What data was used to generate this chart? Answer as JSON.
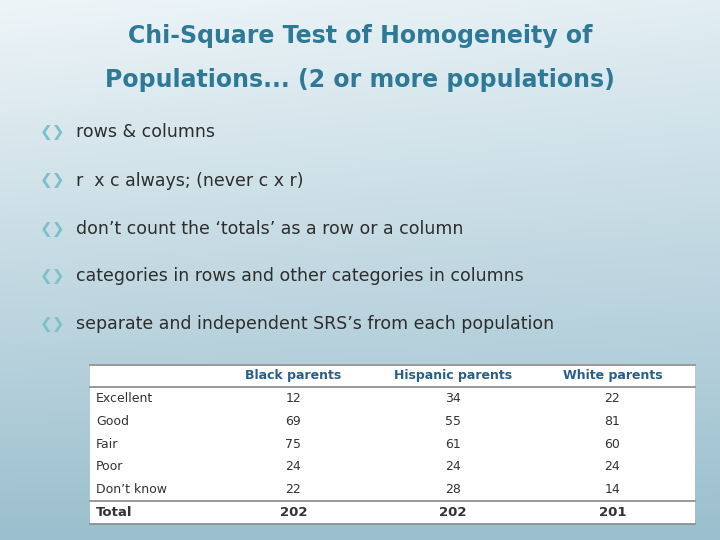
{
  "title_line1": "Chi-Square Test of Homogeneity of",
  "title_line2": "Populations... (2 or more populations)",
  "title_color": "#2e7a96",
  "bullet_color": "#7dbfca",
  "bullets": [
    "rows & columns",
    "r  x c always; (never c x r)",
    "don’t count the ‘totals’ as a row or a column",
    "categories in rows and other categories in columns",
    "separate and independent SRS’s from each population"
  ],
  "table_headers": [
    "",
    "Black parents",
    "Hispanic parents",
    "White parents"
  ],
  "table_rows": [
    [
      "Excellent",
      "12",
      "34",
      "22"
    ],
    [
      "Good",
      "69",
      "55",
      "81"
    ],
    [
      "Fair",
      "75",
      "61",
      "60"
    ],
    [
      "Poor",
      "24",
      "24",
      "24"
    ],
    [
      "Don’t know",
      "22",
      "28",
      "14"
    ],
    [
      "Total",
      "202",
      "202",
      "201"
    ]
  ],
  "bg_color_top_left": "#eef5f8",
  "bg_color_bottom": "#9bbfce",
  "bg_color_right": "#c5dde6",
  "table_header_text_color": "#2a5f8a",
  "table_row_text_color": "#333333",
  "table_bg_color": "#f0f4f6",
  "line_color": "#888888",
  "figsize": [
    7.2,
    5.4
  ],
  "dpi": 100
}
